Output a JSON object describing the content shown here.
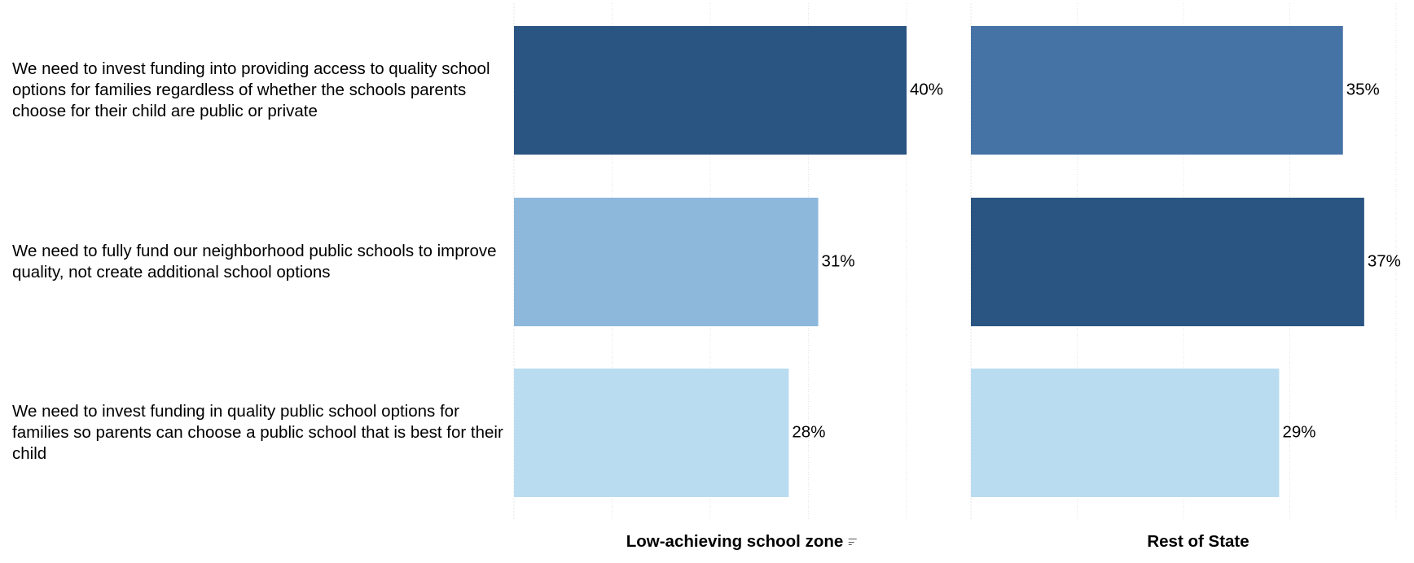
{
  "chart_data": {
    "type": "bar",
    "orientation": "horizontal",
    "categories": [
      "We need to invest funding into providing access to quality school options for families regardless of whether the schools parents choose for their child are public or private",
      "We need to fully fund our neighborhood public schools to improve quality, not create additional school options",
      "We need to invest funding in quality public school options for families so parents can choose a public school that is best for their child"
    ],
    "panels": [
      {
        "title": "Low-achieving school zone",
        "has_sort_icon": true,
        "values": [
          40,
          31,
          28
        ],
        "labels": [
          "40%",
          "31%",
          "28%"
        ],
        "colors": [
          "#2a5582",
          "#8db8db",
          "#badcf0"
        ],
        "xlim": [
          0,
          40
        ]
      },
      {
        "title": "Rest of State",
        "has_sort_icon": false,
        "values": [
          35,
          37,
          29
        ],
        "labels": [
          "35%",
          "37%",
          "29%"
        ],
        "colors": [
          "#4673a6",
          "#2a5582",
          "#badcf0"
        ],
        "xlim": [
          0,
          40
        ]
      }
    ],
    "grid": true,
    "gridline_color": "#e4e4e4",
    "label_color": "#000000"
  }
}
